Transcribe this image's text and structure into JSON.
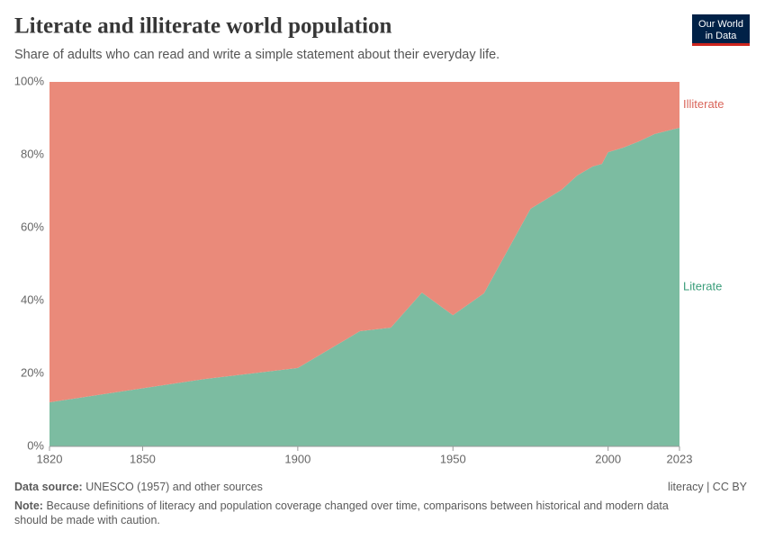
{
  "chart_data": {
    "type": "stacked-area",
    "title": "Literate and illiterate world population",
    "subtitle": "Share of adults who can read and write a simple statement about their everyday life.",
    "x": [
      1820,
      1870,
      1900,
      1920,
      1930,
      1940,
      1950,
      1960,
      1975,
      1985,
      1990,
      1995,
      1998,
      2000,
      2005,
      2010,
      2015,
      2020,
      2023
    ],
    "series": [
      {
        "name": "Literate",
        "color": "#7cbca1",
        "label_color": "#3a9d7a",
        "values": [
          12.1,
          18.5,
          21.5,
          31.6,
          32.6,
          42.2,
          36.0,
          42.0,
          65.2,
          70.4,
          74.3,
          76.8,
          77.5,
          80.7,
          82.0,
          83.7,
          85.7,
          86.8,
          87.4
        ]
      },
      {
        "name": "Illiterate",
        "color": "#ea8a7a",
        "label_color": "#d9655a",
        "values": [
          87.9,
          81.5,
          78.5,
          68.4,
          67.4,
          57.8,
          64.0,
          58.0,
          34.8,
          29.6,
          25.7,
          23.2,
          22.5,
          19.3,
          18.0,
          16.3,
          14.3,
          13.2,
          12.6
        ]
      }
    ],
    "xlim": [
      1820,
      2023
    ],
    "xticks": [
      1820,
      1850,
      1900,
      1950,
      2000,
      2023
    ],
    "ylim": [
      0,
      100
    ],
    "yticks": [
      {
        "value": 0,
        "label": "0%"
      },
      {
        "value": 20,
        "label": "20%"
      },
      {
        "value": 40,
        "label": "40%"
      },
      {
        "value": 60,
        "label": "60%"
      },
      {
        "value": 80,
        "label": "80%"
      },
      {
        "value": 100,
        "label": "100%"
      }
    ],
    "source_label": "Data source:",
    "source": "UNESCO (1957) and other sources",
    "license": "literacy | CC BY",
    "note_label": "Note:",
    "note": "Because definitions of literacy and population coverage changed over time, comparisons between historical and modern data should be made with caution.",
    "logo": [
      "Our World",
      "in Data"
    ]
  }
}
